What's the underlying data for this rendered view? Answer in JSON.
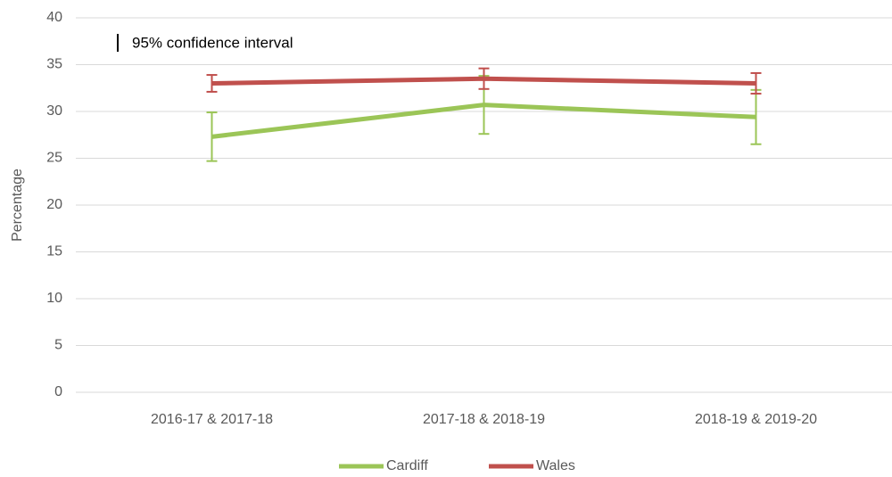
{
  "chart_data": {
    "type": "line",
    "ylabel": "Percentage",
    "annotation": "95% confidence interval",
    "categories": [
      "2016-17 & 2017-18",
      "2017-18 & 2018-19",
      "2018-19 & 2019-20"
    ],
    "series": [
      {
        "name": "Cardiff",
        "color": "#9bc557",
        "values": [
          27.3,
          30.7,
          29.4
        ],
        "errors": [
          2.6,
          3.1,
          2.9
        ]
      },
      {
        "name": "Wales",
        "color": "#c0504d",
        "values": [
          33.0,
          33.5,
          33.0
        ],
        "errors": [
          0.9,
          1.1,
          1.1
        ]
      }
    ],
    "ylim": [
      0,
      40
    ],
    "yticks": [
      0,
      5,
      10,
      15,
      20,
      25,
      30,
      35,
      40
    ],
    "grid": true,
    "legend": "bottom"
  }
}
